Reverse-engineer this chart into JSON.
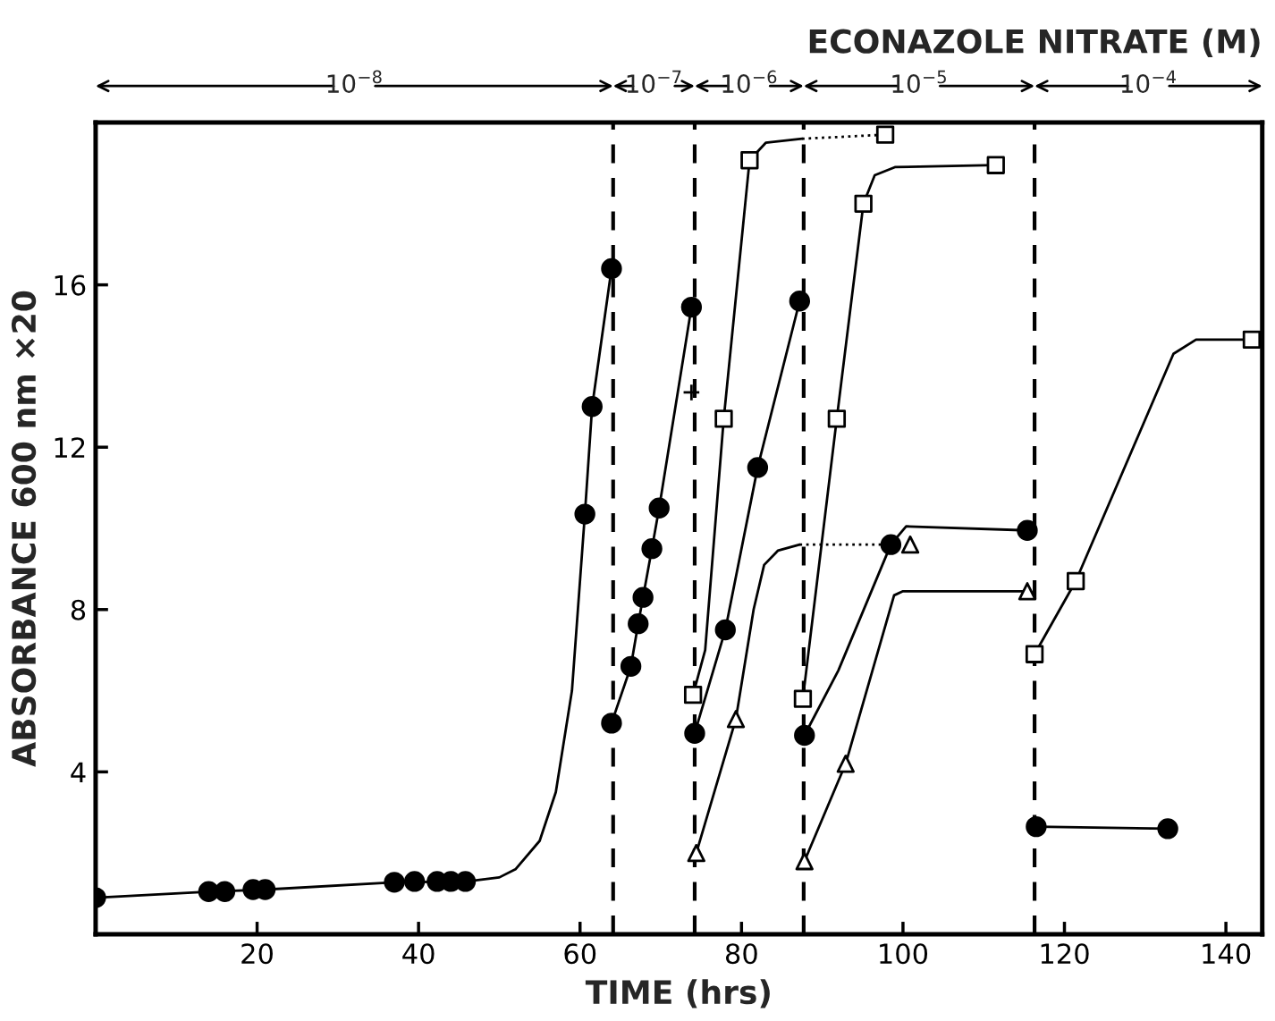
{
  "chart_data": {
    "type": "line",
    "title": "ECONAZOLE NITRATE (M)",
    "xlabel": "TIME (hrs)",
    "ylabel": "ABSORBANCE 600 nm ×20",
    "xlim": [
      0,
      144.5
    ],
    "ylim": [
      0,
      20
    ],
    "xticks": [
      20,
      40,
      60,
      80,
      100,
      120,
      140
    ],
    "yticks": [
      4,
      8,
      12,
      16
    ],
    "grid": false,
    "legend": false,
    "series": [
      {
        "marker": "none",
        "line_style": "solid",
        "color": "#000000",
        "x": [
          0,
          14,
          21,
          37,
          46,
          50,
          52,
          55,
          57,
          59,
          60.6,
          61.5,
          63.9
        ],
        "values": [
          0.9,
          1.05,
          1.1,
          1.28,
          1.3,
          1.4,
          1.6,
          2.3,
          3.5,
          6,
          10.35,
          13.0,
          16.4
        ]
      },
      {
        "type": "scatter",
        "marker": "circle",
        "color": "#000000",
        "x": [
          0,
          14,
          16,
          19.5,
          21,
          37,
          39.5,
          42.3,
          44,
          45.8,
          60.6,
          61.5,
          63.9
        ],
        "values": [
          0.9,
          1.05,
          1.05,
          1.1,
          1.1,
          1.28,
          1.3,
          1.3,
          1.3,
          1.3,
          10.35,
          13.0,
          16.4
        ]
      },
      {
        "marker": "circle",
        "line_style": "solid",
        "color": "#000000",
        "x": [
          63.9,
          66.3,
          67.2,
          67.8,
          68.9,
          69.8,
          73.8
        ],
        "values": [
          5.2,
          6.6,
          7.65,
          8.3,
          9.5,
          10.5,
          15.45
        ]
      },
      {
        "type": "scatter",
        "marker": "cross",
        "color": "#000000",
        "x": [
          73.8
        ],
        "values": [
          13.35
        ]
      },
      {
        "marker": "none",
        "line_style": "solid",
        "color": "#000000",
        "x": [
          74,
          75.5,
          77.8,
          81,
          83,
          87.5
        ],
        "values": [
          5.9,
          7.0,
          12.7,
          19.07,
          19.5,
          19.6
        ]
      },
      {
        "type": "scatter",
        "marker": "square",
        "color": "#000000",
        "x": [
          74,
          77.8,
          81,
          97.8
        ],
        "values": [
          5.9,
          12.7,
          19.07,
          19.7
        ]
      },
      {
        "type": "line",
        "marker": "none",
        "line_style": "dotted",
        "color": "#000000",
        "x": [
          87.5,
          97.8
        ],
        "values": [
          19.6,
          19.7
        ]
      },
      {
        "marker": "circle",
        "line_style": "solid",
        "color": "#000000",
        "x": [
          74.2,
          78,
          82,
          87.2
        ],
        "values": [
          4.95,
          7.5,
          11.5,
          15.6
        ]
      },
      {
        "marker": "none",
        "line_style": "solid",
        "color": "#000000",
        "x": [
          74.4,
          79.3,
          81.5,
          82.8,
          84.5,
          87.2
        ],
        "values": [
          2.0,
          5.3,
          8.0,
          9.1,
          9.45,
          9.6
        ]
      },
      {
        "type": "scatter",
        "marker": "triangle",
        "color": "#000000",
        "x": [
          74.4,
          79.3,
          100.9
        ],
        "values": [
          2.0,
          5.3,
          9.6
        ]
      },
      {
        "type": "line",
        "marker": "none",
        "line_style": "dotted",
        "color": "#000000",
        "x": [
          87.2,
          98.5
        ],
        "values": [
          9.6,
          9.6
        ]
      },
      {
        "marker": "none",
        "line_style": "solid",
        "color": "#000000",
        "x": [
          87.6,
          91.8,
          95.1,
          96.5,
          99,
          111.5
        ],
        "values": [
          5.8,
          12.7,
          18.0,
          18.7,
          18.9,
          18.95
        ]
      },
      {
        "type": "scatter",
        "marker": "square",
        "color": "#000000",
        "x": [
          87.6,
          91.8,
          95.1,
          111.5
        ],
        "values": [
          5.8,
          12.7,
          18.0,
          18.95
        ]
      },
      {
        "marker": "none",
        "line_style": "solid",
        "color": "#000000",
        "x": [
          87.8,
          92,
          98.5,
          100.4,
          115.4
        ],
        "values": [
          4.9,
          6.5,
          9.6,
          10.05,
          9.95
        ]
      },
      {
        "type": "scatter",
        "marker": "circle",
        "color": "#000000",
        "x": [
          87.8,
          98.5,
          115.4
        ],
        "values": [
          4.9,
          9.6,
          9.95
        ]
      },
      {
        "marker": "none",
        "line_style": "solid",
        "color": "#000000",
        "x": [
          87.8,
          92.9,
          98.9,
          100,
          115.4
        ],
        "values": [
          1.8,
          4.2,
          8.35,
          8.45,
          8.45
        ]
      },
      {
        "type": "scatter",
        "marker": "triangle",
        "color": "#000000",
        "x": [
          87.8,
          92.9,
          115.4
        ],
        "values": [
          1.8,
          4.2,
          8.45
        ]
      },
      {
        "marker": "none",
        "line_style": "solid",
        "color": "#000000",
        "x": [
          116.3,
          121.4,
          133.5,
          136.3,
          143.2
        ],
        "values": [
          6.9,
          8.7,
          14.3,
          14.65,
          14.65
        ]
      },
      {
        "type": "scatter",
        "marker": "square",
        "color": "#000000",
        "x": [
          116.3,
          121.4,
          143.2
        ],
        "values": [
          6.9,
          8.7,
          14.65
        ]
      },
      {
        "marker": "circle",
        "line_style": "solid",
        "color": "#000000",
        "x": [
          116.5,
          132.8
        ],
        "values": [
          2.65,
          2.6
        ]
      }
    ],
    "ref_lines": [
      {
        "axis": "x",
        "value": 64.1,
        "line_style": "dashed",
        "color": "#000000"
      },
      {
        "axis": "x",
        "value": 74.2,
        "line_style": "dashed",
        "color": "#000000"
      },
      {
        "axis": "x",
        "value": 87.7,
        "line_style": "dashed",
        "color": "#000000"
      },
      {
        "axis": "x",
        "value": 116.3,
        "line_style": "dashed",
        "color": "#000000"
      }
    ],
    "annotations": [
      "10$^{−8}$",
      "10$^{−7}$",
      "10$^{−6}$",
      "10$^{−5}$",
      "10$^{−4}$"
    ]
  }
}
